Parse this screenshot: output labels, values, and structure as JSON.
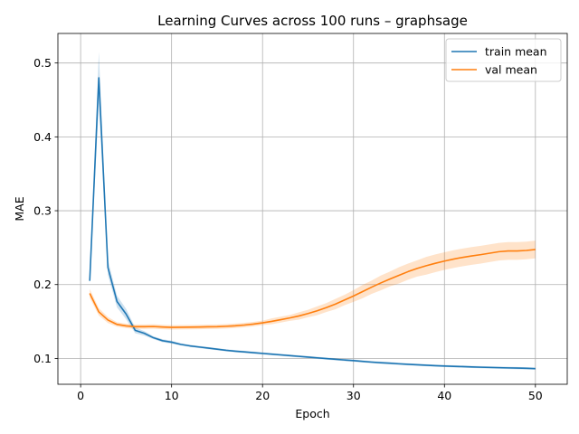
{
  "chart_data": {
    "type": "line",
    "title": "Learning Curves across 100 runs – graphsage",
    "xlabel": "Epoch",
    "ylabel": "MAE",
    "xlim": [
      -2.5,
      53.5
    ],
    "ylim": [
      0.065,
      0.54
    ],
    "x_ticks": [
      0,
      10,
      20,
      30,
      40,
      50
    ],
    "y_ticks": [
      0.1,
      0.2,
      0.3,
      0.4,
      0.5
    ],
    "x_tick_labels": [
      "0",
      "10",
      "20",
      "30",
      "40",
      "50"
    ],
    "y_tick_labels": [
      "0.1",
      "0.2",
      "0.3",
      "0.4",
      "0.5"
    ],
    "grid": true,
    "legend_position": "top-right",
    "x": [
      1,
      2,
      3,
      4,
      5,
      6,
      7,
      8,
      9,
      10,
      11,
      12,
      13,
      14,
      15,
      16,
      17,
      18,
      19,
      20,
      21,
      22,
      23,
      24,
      25,
      26,
      27,
      28,
      29,
      30,
      31,
      32,
      33,
      34,
      35,
      36,
      37,
      38,
      39,
      40,
      41,
      42,
      43,
      44,
      45,
      46,
      47,
      48,
      49,
      50
    ],
    "series": [
      {
        "name": "train mean",
        "color": "#1f77b4",
        "values": [
          0.205,
          0.48,
          0.223,
          0.177,
          0.16,
          0.138,
          0.134,
          0.128,
          0.124,
          0.122,
          0.119,
          0.117,
          0.1155,
          0.114,
          0.1125,
          0.111,
          0.1098,
          0.1088,
          0.1078,
          0.1068,
          0.1058,
          0.1048,
          0.1038,
          0.1028,
          0.1018,
          0.1008,
          0.0998,
          0.0988,
          0.0979,
          0.097,
          0.096,
          0.095,
          0.0942,
          0.0935,
          0.0927,
          0.092,
          0.0914,
          0.0908,
          0.0902,
          0.0897,
          0.0893,
          0.0889,
          0.0885,
          0.0881,
          0.0878,
          0.0875,
          0.0872,
          0.0869,
          0.0866,
          0.0862
        ],
        "band": [
          0.004,
          0.035,
          0.01,
          0.008,
          0.007,
          0.004,
          0.003,
          0.002,
          0.002,
          0.002,
          0.0015,
          0.0015,
          0.0015,
          0.0015,
          0.0015,
          0.0015,
          0.0015,
          0.0015,
          0.0015,
          0.0015,
          0.0015,
          0.0015,
          0.0015,
          0.0015,
          0.0015,
          0.0015,
          0.0015,
          0.0015,
          0.0015,
          0.0015,
          0.0015,
          0.0015,
          0.0015,
          0.0015,
          0.0015,
          0.0015,
          0.0015,
          0.0015,
          0.0015,
          0.0015,
          0.0015,
          0.0015,
          0.0015,
          0.0015,
          0.0015,
          0.0015,
          0.0015,
          0.0015,
          0.0015,
          0.0015
        ]
      },
      {
        "name": "val mean",
        "color": "#ff7f0e",
        "values": [
          0.188,
          0.163,
          0.152,
          0.146,
          0.144,
          0.143,
          0.143,
          0.1432,
          0.1425,
          0.142,
          0.1422,
          0.1423,
          0.1425,
          0.1428,
          0.143,
          0.1435,
          0.1442,
          0.1452,
          0.1465,
          0.1482,
          0.1502,
          0.1525,
          0.1548,
          0.1575,
          0.1608,
          0.1645,
          0.1688,
          0.1735,
          0.179,
          0.1845,
          0.1905,
          0.1965,
          0.2022,
          0.2075,
          0.2125,
          0.2175,
          0.2218,
          0.2255,
          0.2288,
          0.2318,
          0.2345,
          0.2368,
          0.2388,
          0.2405,
          0.2425,
          0.2445,
          0.2455,
          0.2455,
          0.2462,
          0.2475
        ],
        "band": [
          0.006,
          0.005,
          0.004,
          0.003,
          0.003,
          0.003,
          0.003,
          0.003,
          0.003,
          0.003,
          0.003,
          0.003,
          0.003,
          0.003,
          0.003,
          0.003,
          0.003,
          0.003,
          0.003,
          0.003,
          0.004,
          0.004,
          0.004,
          0.005,
          0.005,
          0.006,
          0.006,
          0.007,
          0.007,
          0.008,
          0.009,
          0.009,
          0.01,
          0.01,
          0.011,
          0.011,
          0.011,
          0.012,
          0.012,
          0.012,
          0.012,
          0.012,
          0.012,
          0.012,
          0.012,
          0.012,
          0.012,
          0.012,
          0.012,
          0.012
        ]
      }
    ]
  }
}
